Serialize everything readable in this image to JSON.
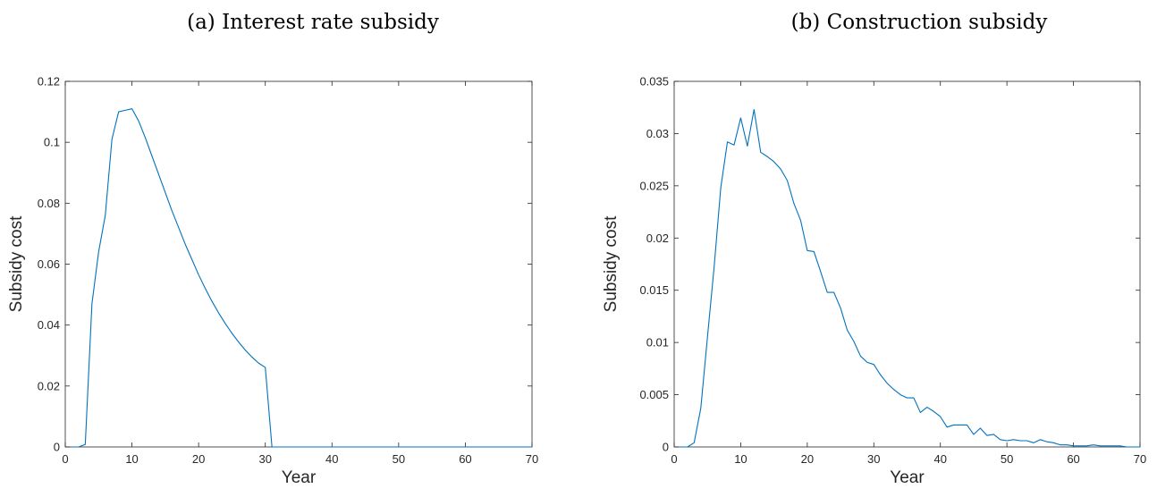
{
  "chart_data": [
    {
      "type": "line",
      "caption": "(a) Interest rate subsidy",
      "xlabel": "Year",
      "ylabel": "Subsidy cost",
      "xlim": [
        0,
        70
      ],
      "ylim": [
        0,
        0.12
      ],
      "xticks": [
        "0",
        "10",
        "20",
        "30",
        "40",
        "50",
        "60",
        "70"
      ],
      "yticks": [
        "0",
        "0.02",
        "0.04",
        "0.06",
        "0.08",
        "0.1",
        "0.12"
      ],
      "grid": false,
      "color": "#0072BD",
      "x": [
        1,
        2,
        3,
        4,
        5,
        6,
        7,
        8,
        9,
        10,
        11,
        12,
        13,
        14,
        15,
        16,
        17,
        18,
        19,
        20,
        21,
        22,
        23,
        24,
        25,
        26,
        27,
        28,
        29,
        30,
        31,
        32,
        33,
        34,
        35,
        36,
        37,
        38,
        39,
        40,
        41,
        42,
        43,
        44,
        45,
        46,
        47,
        48,
        49,
        50,
        51,
        52,
        53,
        54,
        55,
        56,
        57,
        58,
        59,
        60,
        61,
        62,
        63,
        64,
        65,
        66,
        67,
        68,
        69,
        70
      ],
      "y": [
        0,
        0,
        0.0008,
        0.047,
        0.064,
        0.076,
        0.101,
        0.11,
        0.1105,
        0.111,
        0.107,
        0.1015,
        0.0955,
        0.0895,
        0.0835,
        0.0775,
        0.072,
        0.0665,
        0.0615,
        0.0565,
        0.052,
        0.0478,
        0.044,
        0.0405,
        0.0373,
        0.0344,
        0.0318,
        0.0295,
        0.0275,
        0.0261,
        0,
        0,
        0,
        0,
        0,
        0,
        0,
        0,
        0,
        0,
        0,
        0,
        0,
        0,
        0,
        0,
        0,
        0,
        0,
        0,
        0,
        0,
        0,
        0,
        0,
        0,
        0,
        0,
        0,
        0,
        0,
        0,
        0,
        0,
        0,
        0,
        0,
        0,
        0,
        0
      ]
    },
    {
      "type": "line",
      "caption": "(b) Construction subsidy",
      "xlabel": "Year",
      "ylabel": "Subsidy cost",
      "xlim": [
        0,
        70
      ],
      "ylim": [
        0,
        0.035
      ],
      "xticks": [
        "0",
        "10",
        "20",
        "30",
        "40",
        "50",
        "60",
        "70"
      ],
      "yticks": [
        "0",
        "0.005",
        "0.01",
        "0.015",
        "0.02",
        "0.025",
        "0.03",
        "0.035"
      ],
      "grid": false,
      "color": "#0072BD",
      "x": [
        1,
        2,
        3,
        4,
        5,
        6,
        7,
        8,
        9,
        10,
        11,
        12,
        13,
        14,
        15,
        16,
        17,
        18,
        19,
        20,
        21,
        22,
        23,
        24,
        25,
        26,
        27,
        28,
        29,
        30,
        31,
        32,
        33,
        34,
        35,
        36,
        37,
        38,
        39,
        40,
        41,
        42,
        43,
        44,
        45,
        46,
        47,
        48,
        49,
        50,
        51,
        52,
        53,
        54,
        55,
        56,
        57,
        58,
        59,
        60,
        61,
        62,
        63,
        64,
        65,
        66,
        67,
        68,
        69,
        70
      ],
      "y": [
        0,
        0,
        0.0004,
        0.0037,
        0.0105,
        0.0172,
        0.0248,
        0.0292,
        0.0289,
        0.0315,
        0.0288,
        0.0323,
        0.0282,
        0.0278,
        0.0273,
        0.0266,
        0.0255,
        0.0233,
        0.0217,
        0.0188,
        0.0187,
        0.0168,
        0.0148,
        0.0148,
        0.0133,
        0.0112,
        0.0101,
        0.0087,
        0.0081,
        0.0079,
        0.0069,
        0.0061,
        0.0055,
        0.005,
        0.0047,
        0.0047,
        0.0033,
        0.0038,
        0.0034,
        0.0029,
        0.0019,
        0.0021,
        0.0021,
        0.0021,
        0.0012,
        0.0018,
        0.0011,
        0.0012,
        0.0007,
        0.0006,
        0.0007,
        0.0006,
        0.0006,
        0.0004,
        0.0007,
        0.0005,
        0.0004,
        0.0002,
        0.0002,
        0.0001,
        0.0001,
        0.0001,
        0.0002,
        0.0001,
        0.0001,
        0.0001,
        0.0001,
        0,
        0,
        0
      ]
    }
  ]
}
